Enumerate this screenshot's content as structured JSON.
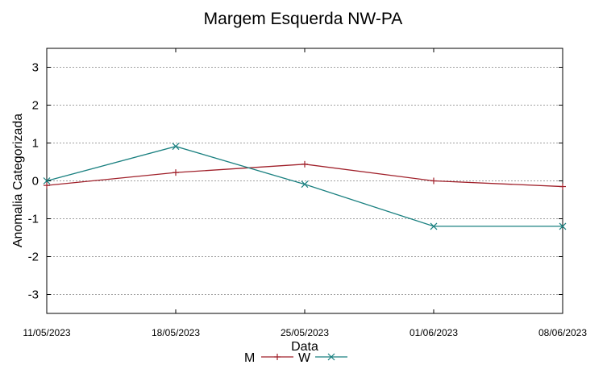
{
  "chart_data": {
    "type": "line",
    "title": "Margem Esquerda NW-PA",
    "xlabel": "Data",
    "ylabel": "Anomalia Categorizada",
    "x": [
      "11/05/2023",
      "18/05/2023",
      "25/05/2023",
      "01/06/2023",
      "08/06/2023"
    ],
    "xlim": [
      "11/05/2023",
      "08/06/2023"
    ],
    "ylim": [
      -3.5,
      3.5
    ],
    "yticks": [
      3,
      2,
      1,
      0,
      -1,
      -2,
      -3
    ],
    "grid": true,
    "legend_position": "bottom",
    "series": [
      {
        "name": "M",
        "color": "#a0202a",
        "marker": "plus",
        "values": [
          -0.12,
          0.22,
          0.44,
          0.0,
          -0.15
        ]
      },
      {
        "name": "W",
        "color": "#1a8080",
        "marker": "cross",
        "values": [
          0.0,
          0.91,
          -0.09,
          -1.2,
          -1.2
        ]
      }
    ]
  }
}
